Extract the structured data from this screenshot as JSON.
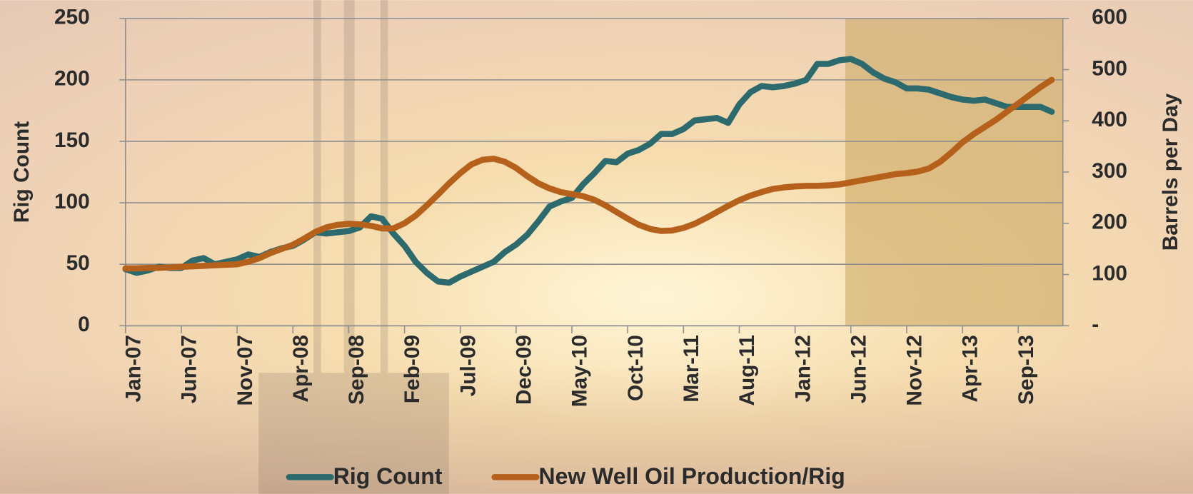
{
  "chart_data": {
    "type": "line",
    "categories": [
      "Jan-07",
      null,
      null,
      null,
      null,
      "Jun-07",
      null,
      null,
      null,
      null,
      "Nov-07",
      null,
      null,
      null,
      null,
      "Apr-08",
      null,
      null,
      null,
      null,
      "Sep-08",
      null,
      null,
      null,
      null,
      "Feb-09",
      null,
      null,
      null,
      null,
      "Jul-09",
      null,
      null,
      null,
      null,
      "Dec-09",
      null,
      null,
      null,
      null,
      "May-10",
      null,
      null,
      null,
      null,
      "Oct-10",
      null,
      null,
      null,
      null,
      "Mar-11",
      null,
      null,
      null,
      null,
      "Aug-11",
      null,
      null,
      null,
      null,
      "Jan-12",
      null,
      null,
      null,
      null,
      "Jun-12",
      null,
      null,
      null,
      null,
      "Nov-12",
      null,
      null,
      null,
      null,
      "Apr-13",
      null,
      null,
      null,
      null,
      "Sep-13",
      null,
      null,
      null
    ],
    "series": [
      {
        "name": "Rig Count",
        "color": "#2d6a6d",
        "axis": "y",
        "values": [
          46,
          43,
          45,
          48,
          47,
          47,
          53,
          55,
          50,
          52,
          54,
          58,
          56,
          60,
          63,
          65,
          70,
          76,
          75,
          76,
          77,
          80,
          89,
          87,
          75,
          65,
          52,
          43,
          36,
          35,
          40,
          44,
          48,
          52,
          60,
          66,
          74,
          85,
          97,
          101,
          104,
          115,
          124,
          134,
          133,
          140,
          143,
          148,
          156,
          156,
          160,
          167,
          168,
          169,
          165,
          180,
          190,
          195,
          194,
          195,
          197,
          200,
          213,
          213,
          216,
          217,
          213,
          206,
          201,
          198,
          193,
          193,
          192,
          189,
          186,
          184,
          183,
          184,
          181,
          178,
          178,
          178,
          178,
          174
        ]
      },
      {
        "name": "New Well Oil Production/Rig",
        "color": "#b5611b",
        "axis": "y2",
        "values": [
          112,
          112,
          113,
          113,
          114,
          115,
          116,
          117,
          118,
          119,
          120,
          125,
          132,
          142,
          150,
          158,
          170,
          183,
          192,
          197,
          199,
          198,
          195,
          190,
          190,
          200,
          215,
          235,
          256,
          278,
          298,
          315,
          324,
          326,
          320,
          308,
          292,
          278,
          268,
          261,
          257,
          253,
          246,
          235,
          222,
          209,
          197,
          189,
          185,
          186,
          191,
          199,
          210,
          222,
          234,
          245,
          254,
          261,
          267,
          270,
          272,
          273,
          273,
          274,
          276,
          280,
          284,
          288,
          292,
          296,
          298,
          301,
          307,
          320,
          338,
          358,
          374,
          388,
          402,
          418,
          434,
          450,
          466,
          480
        ]
      }
    ],
    "y_label": "Rig Count",
    "y2_label": "Barrels per Day",
    "ylim": [
      0,
      250
    ],
    "yticks": [
      0,
      50,
      100,
      150,
      200,
      250
    ],
    "y2lim": [
      0,
      600
    ],
    "y2ticks": [
      {
        "value": 0,
        "label": "-"
      },
      100,
      200,
      300,
      400,
      500,
      600
    ],
    "grid": true,
    "legend": "bottom"
  }
}
